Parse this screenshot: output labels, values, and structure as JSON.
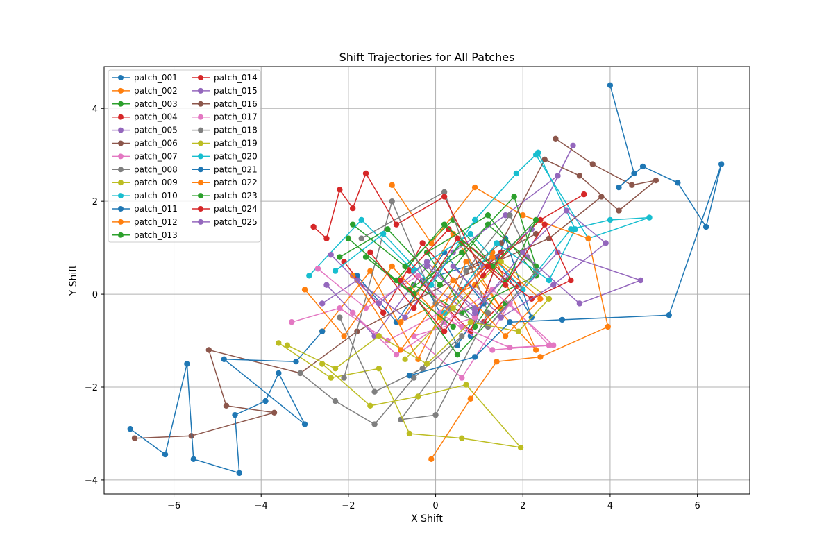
{
  "chart_data": {
    "type": "line",
    "title": "Shift Trajectories for All Patches",
    "xlabel": "X Shift",
    "ylabel": "Y Shift",
    "xlim": [
      -7.6,
      7.2
    ],
    "ylim": [
      -4.3,
      4.9
    ],
    "xticks": [
      -6,
      -4,
      -2,
      0,
      2,
      4,
      6
    ],
    "yticks": [
      -4,
      -2,
      0,
      2,
      4
    ],
    "grid": true,
    "legend_position": "top-left",
    "legend_columns": 2,
    "series": [
      {
        "name": "patch_001",
        "color": "#1f77b4",
        "x": [
          -1.8,
          -0.9,
          0.2,
          1.1,
          0.5,
          -0.3,
          1.4,
          2.2,
          1.6,
          0.8
        ],
        "y": [
          0.4,
          -0.6,
          0.9,
          -0.2,
          -1.1,
          0.3,
          0.8,
          -0.5,
          1.2,
          -0.9
        ]
      },
      {
        "name": "patch_002",
        "color": "#ff7f0e",
        "x": [
          -2.6,
          -1.5,
          -0.4,
          0.7,
          1.5,
          0.4,
          -0.8,
          0.9,
          2.3,
          1.3
        ],
        "y": [
          -0.8,
          0.5,
          -1.4,
          0.7,
          -0.3,
          1.3,
          -0.6,
          0.2,
          -1.2,
          0.9
        ]
      },
      {
        "name": "patch_003",
        "color": "#2ca02c",
        "x": [
          -1.9,
          -0.7,
          0.4,
          1.6,
          0.9,
          -0.2,
          1.2,
          2.3,
          0.6,
          -0.5
        ],
        "y": [
          1.5,
          0.6,
          1.6,
          0.3,
          -0.7,
          0.9,
          1.7,
          0.4,
          -0.4,
          0.2
        ]
      },
      {
        "name": "patch_004",
        "color": "#d62728",
        "x": [
          -2.1,
          -1.2,
          -0.3,
          0.6,
          1.5,
          0.8,
          -0.6,
          0.3,
          1.9,
          1.1
        ],
        "y": [
          0.7,
          -0.4,
          1.1,
          0.1,
          0.9,
          -0.8,
          0.5,
          1.4,
          0.2,
          -0.6
        ]
      },
      {
        "name": "patch_005",
        "color": "#9467bd",
        "x": [
          -2.5,
          -1.4,
          -0.2,
          0.9,
          2.1,
          3.3,
          4.7,
          2.8,
          1.2,
          -0.4
        ],
        "y": [
          0.2,
          -0.9,
          0.6,
          -0.3,
          0.8,
          -0.2,
          0.3,
          0.9,
          -0.7,
          0.4
        ]
      },
      {
        "name": "patch_006",
        "color": "#8c564b",
        "x": [
          -6.9,
          -5.6,
          -3.7,
          -4.8,
          -5.2,
          -3.1,
          -1.8,
          0.4,
          2.6,
          3.8
        ],
        "y": [
          -3.1,
          -3.05,
          -2.55,
          -2.4,
          -1.2,
          -1.7,
          -0.8,
          0.3,
          1.2,
          2.1
        ]
      },
      {
        "name": "patch_007",
        "color": "#e377c2",
        "x": [
          -3.3,
          -2.2,
          -1.1,
          0.1,
          1.3,
          2.6,
          1.7,
          0.6,
          -0.5,
          0.9
        ],
        "y": [
          -0.6,
          -0.3,
          -1.0,
          -0.4,
          -1.2,
          -1.1,
          -0.2,
          -1.8,
          -0.9,
          -0.5
        ]
      },
      {
        "name": "patch_008",
        "color": "#7f7f7f",
        "x": [
          -3.1,
          -2.3,
          -1.4,
          -0.5,
          0.6,
          -0.8,
          0.0,
          1.2,
          0.2,
          -1.7
        ],
        "y": [
          -1.7,
          -2.3,
          -2.8,
          -1.8,
          -0.9,
          -2.7,
          -2.6,
          -0.4,
          2.2,
          1.2
        ]
      },
      {
        "name": "patch_009",
        "color": "#bcbd22",
        "x": [
          -3.6,
          -2.4,
          -1.3,
          -0.6,
          0.6,
          1.95,
          0.7,
          -0.4,
          -1.5,
          -2.6
        ],
        "y": [
          -1.05,
          -1.8,
          -1.6,
          -3.0,
          -3.1,
          -3.3,
          -1.95,
          -2.2,
          -2.4,
          -1.5
        ]
      },
      {
        "name": "patch_010",
        "color": "#17becf",
        "x": [
          -2.9,
          -1.7,
          -0.5,
          0.8,
          2.0,
          3.1,
          4.0,
          4.9,
          3.5,
          2.3
        ],
        "y": [
          0.4,
          1.6,
          0.5,
          1.3,
          0.1,
          1.4,
          1.6,
          1.65,
          1.2,
          3.0
        ]
      },
      {
        "name": "patch_011",
        "color": "#1f77b4",
        "x": [
          -7.0,
          -6.2,
          -5.7,
          -5.55,
          -4.5,
          -4.6,
          -3.9,
          -3.6,
          -3.0,
          -4.85,
          -3.2,
          -2.6
        ],
        "y": [
          -2.9,
          -3.45,
          -1.5,
          -3.55,
          -3.85,
          -2.6,
          -2.3,
          -1.7,
          -2.8,
          -1.4,
          -1.45,
          -0.8
        ]
      },
      {
        "name": "patch_012",
        "color": "#ff7f0e",
        "x": [
          -1.0,
          -0.1,
          0.9,
          2.0,
          3.5,
          3.95,
          2.4,
          1.4,
          0.8,
          -0.1
        ],
        "y": [
          2.35,
          1.1,
          2.3,
          1.7,
          1.2,
          -0.7,
          -1.35,
          -1.45,
          -2.25,
          -3.55
        ]
      },
      {
        "name": "patch_013",
        "color": "#2ca02c",
        "x": [
          -2.2,
          -1.1,
          0.1,
          1.2,
          2.3,
          1.8,
          0.6,
          -0.6,
          0.5,
          1.6
        ],
        "y": [
          0.8,
          1.4,
          0.2,
          1.5,
          0.6,
          2.1,
          0.9,
          0.1,
          -1.3,
          -0.2
        ]
      },
      {
        "name": "patch_014",
        "color": "#d62728",
        "x": [
          -2.8,
          -2.5,
          -2.2,
          -1.9,
          -1.6,
          -0.9,
          0.2,
          1.1,
          2.4,
          3.4
        ],
        "y": [
          1.45,
          1.2,
          2.25,
          1.85,
          2.6,
          1.5,
          2.1,
          0.4,
          1.6,
          2.15
        ]
      },
      {
        "name": "patch_015",
        "color": "#9467bd",
        "x": [
          -2.6,
          -1.8,
          -0.7,
          0.4,
          1.6,
          2.8,
          3.15,
          2.2,
          1.1,
          0.3
        ],
        "y": [
          -0.2,
          0.3,
          -0.5,
          0.9,
          1.7,
          2.55,
          3.2,
          1.4,
          0.6,
          -0.3
        ]
      },
      {
        "name": "patch_016",
        "color": "#8c564b",
        "x": [
          2.75,
          3.6,
          4.5,
          5.05,
          4.2,
          3.3,
          2.5,
          1.5,
          0.7,
          2.3
        ],
        "y": [
          3.35,
          2.8,
          2.35,
          2.45,
          1.8,
          2.55,
          2.9,
          1.1,
          0.5,
          1.3
        ]
      },
      {
        "name": "patch_017",
        "color": "#e377c2",
        "x": [
          -2.7,
          -1.6,
          -0.4,
          0.6,
          1.7,
          2.7,
          1.3,
          0.2,
          -0.9,
          -1.9
        ],
        "y": [
          0.55,
          -0.3,
          0.4,
          -0.7,
          -1.15,
          -1.1,
          0.1,
          -0.6,
          -1.3,
          -0.4
        ]
      },
      {
        "name": "patch_018",
        "color": "#7f7f7f",
        "x": [
          -2.2,
          -1.4,
          -0.3,
          0.7,
          1.7,
          2.3,
          1.2,
          0.0,
          -1.0,
          -2.1
        ],
        "y": [
          -0.5,
          -2.1,
          -1.6,
          0.5,
          1.7,
          0.5,
          -0.7,
          -0.2,
          2.0,
          -1.8
        ]
      },
      {
        "name": "patch_019",
        "color": "#bcbd22",
        "x": [
          -3.4,
          -2.3,
          -1.3,
          -0.2,
          0.8,
          1.9,
          2.6,
          1.5,
          0.4,
          -0.7
        ],
        "y": [
          -1.1,
          -1.6,
          -0.9,
          -1.5,
          -0.6,
          -0.8,
          -0.1,
          0.7,
          -0.3,
          -1.4
        ]
      },
      {
        "name": "patch_020",
        "color": "#17becf",
        "x": [
          -2.3,
          -1.2,
          -0.1,
          0.9,
          1.85,
          2.35,
          3.2,
          2.6,
          1.4,
          0.2
        ],
        "y": [
          0.5,
          1.3,
          0.2,
          1.6,
          2.6,
          3.05,
          1.4,
          0.3,
          1.1,
          -0.4
        ]
      },
      {
        "name": "patch_021",
        "color": "#1f77b4",
        "x": [
          4.0,
          4.55,
          4.2,
          4.75,
          5.55,
          6.2,
          6.55,
          5.35,
          2.9,
          1.7,
          0.9,
          -0.6
        ],
        "y": [
          4.5,
          2.6,
          2.3,
          2.75,
          2.4,
          1.45,
          2.8,
          -0.45,
          -0.55,
          -0.6,
          -1.35,
          -1.75
        ]
      },
      {
        "name": "patch_022",
        "color": "#ff7f0e",
        "x": [
          -3.0,
          -2.1,
          -1.0,
          0.1,
          1.3,
          2.4,
          1.6,
          0.4,
          -0.8,
          -1.9
        ],
        "y": [
          0.1,
          -0.9,
          0.6,
          -0.5,
          0.8,
          -0.1,
          -0.9,
          0.3,
          -1.2,
          0.4
        ]
      },
      {
        "name": "patch_023",
        "color": "#2ca02c",
        "x": [
          -2.0,
          -0.9,
          0.2,
          1.3,
          2.3,
          1.6,
          0.6,
          -0.5,
          -1.6,
          0.4
        ],
        "y": [
          1.2,
          0.3,
          1.5,
          0.6,
          1.6,
          0.2,
          1.1,
          0.0,
          0.8,
          -0.7
        ]
      },
      {
        "name": "patch_024",
        "color": "#d62728",
        "x": [
          -1.5,
          -0.5,
          0.5,
          1.6,
          2.5,
          3.1,
          2.2,
          1.2,
          0.2,
          -0.8
        ],
        "y": [
          0.9,
          -0.3,
          1.2,
          0.2,
          1.5,
          0.3,
          -0.1,
          0.6,
          -0.8,
          0.3
        ]
      },
      {
        "name": "patch_025",
        "color": "#9467bd",
        "x": [
          -2.4,
          -1.3,
          -0.2,
          0.9,
          2.0,
          3.0,
          3.9,
          2.7,
          1.5,
          0.4
        ],
        "y": [
          0.85,
          -0.2,
          0.7,
          -0.4,
          0.9,
          1.8,
          1.1,
          0.2,
          -0.5,
          0.6
        ]
      }
    ]
  }
}
